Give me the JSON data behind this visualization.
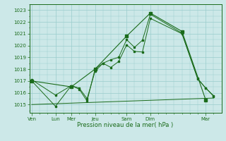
{
  "xlabel": "Pression niveau de la mer( hPa )",
  "ylim": [
    1014.3,
    1023.5
  ],
  "yticks": [
    1015,
    1016,
    1017,
    1018,
    1019,
    1020,
    1021,
    1022,
    1023
  ],
  "bg_color": "#cce8e8",
  "grid_color": "#99cccc",
  "line_color": "#1a6b1a",
  "xtick_major_pos": [
    0,
    3,
    5,
    8,
    12,
    15,
    22
  ],
  "xtick_major_labels": [
    "Ven",
    "Lun",
    "Mer",
    "Jeu",
    "Sam",
    "Dim",
    "Mar"
  ],
  "xlim": [
    -0.3,
    24.0
  ],
  "series1_x": [
    0,
    3,
    5,
    6,
    7,
    8,
    9,
    10,
    11,
    12,
    13,
    14,
    15,
    19,
    21,
    22,
    23
  ],
  "series1_y": [
    1017.1,
    1015.8,
    1016.6,
    1016.3,
    1015.3,
    1018.0,
    1018.5,
    1018.15,
    1018.65,
    1020.05,
    1019.5,
    1019.45,
    1022.3,
    1021.0,
    1017.15,
    1016.4,
    1015.75
  ],
  "series2_x": [
    0,
    3,
    5,
    6,
    7,
    8,
    9,
    10,
    11,
    12,
    13,
    14,
    15,
    19,
    21,
    22,
    23
  ],
  "series2_y": [
    1017.0,
    1014.85,
    1016.6,
    1016.4,
    1015.5,
    1017.8,
    1018.5,
    1018.8,
    1019.0,
    1020.5,
    1019.85,
    1020.45,
    1022.65,
    1021.05,
    1017.2,
    1016.4,
    1015.7
  ],
  "series3_x": [
    0,
    5,
    8,
    12,
    15,
    19,
    22
  ],
  "series3_y": [
    1017.0,
    1016.5,
    1018.0,
    1020.8,
    1022.75,
    1021.2,
    1015.4
  ],
  "series4_x": [
    0,
    23
  ],
  "series4_y": [
    1015.0,
    1015.55
  ]
}
